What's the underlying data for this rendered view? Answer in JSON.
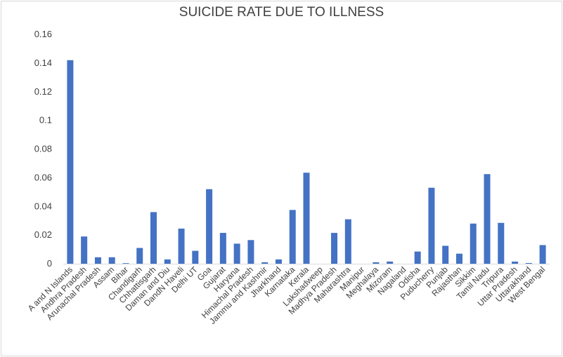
{
  "chart_data": {
    "type": "bar",
    "title": "SUICIDE RATE DUE TO ILLNESS",
    "xlabel": "",
    "ylabel": "",
    "ylim": [
      0,
      0.16
    ],
    "yticks": [
      "0",
      "0.02",
      "0.04",
      "0.06",
      "0.08",
      "0.1",
      "0.12",
      "0.14",
      "0.16"
    ],
    "grid": false,
    "legend": "none",
    "bar_color": "#4472c4",
    "categories": [
      "A and N Islands",
      "Andhra Pradesh",
      "Arunachal Pradesh",
      "Assam",
      "Bihar",
      "Chandigarh",
      "Chhattisgarh",
      "Daman and Diu",
      "DandN Haveli",
      "Delhi UT",
      "Goa",
      "Gujarat",
      "Haryana",
      "Himachal Pradesh",
      "Jammu and Kashmir",
      "Jharkhand",
      "Karnataka",
      "Kerala",
      "Lakshadweep",
      "Madhya Pradesh",
      "Maharashtra",
      "Manipur",
      "Meghalaya",
      "Mizoram",
      "Nagaland",
      "Odisha",
      "Puducherry",
      "Punjab",
      "Rajasthan",
      "Sikkim",
      "Tamil Nadu",
      "Tripura",
      "Uttar Pradesh",
      "Uttarakhand",
      "West Bengal"
    ],
    "values": [
      0.142,
      0.019,
      0.0045,
      0.0045,
      0.0004,
      0.011,
      0.036,
      0.003,
      0.0245,
      0.009,
      0.052,
      0.0215,
      0.014,
      0.0165,
      0.001,
      0.003,
      0.0375,
      0.0635,
      0.0,
      0.0215,
      0.031,
      0.0,
      0.001,
      0.0015,
      0.0,
      0.0085,
      0.053,
      0.0125,
      0.007,
      0.028,
      0.0625,
      0.0285,
      0.0015,
      0.0005,
      0.013
    ]
  }
}
